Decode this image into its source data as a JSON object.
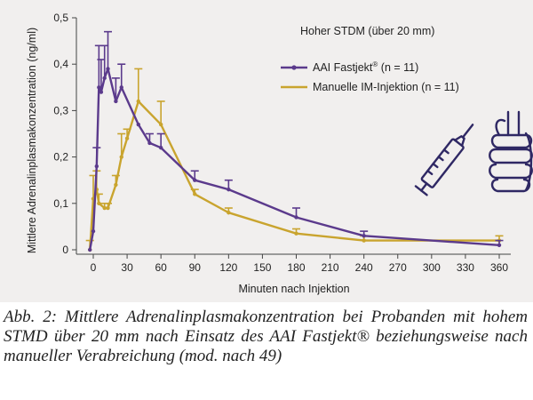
{
  "chart_data": {
    "type": "line",
    "title": "Hoher STDM (über 20 mm)",
    "xlabel": "Minuten nach Injektion",
    "ylabel": "Mittlere Adrenalinplasmakonzentration (ng/ml)",
    "xlim": [
      -5,
      365
    ],
    "ylim": [
      0,
      0.5
    ],
    "x_ticks": [
      "0",
      "30",
      "60",
      "90",
      "120",
      "150",
      "180",
      "210",
      "240",
      "270",
      "300",
      "330",
      "360"
    ],
    "y_ticks": [
      "0",
      "0,1",
      "0,2",
      "0,3",
      "0,4",
      "0,5"
    ],
    "legend_position": "top-right",
    "series": [
      {
        "name": "AAI Fastjekt",
        "name_suffix": "®",
        "n_label": "(n = 11)",
        "color": "#5b3a8c",
        "points": [
          {
            "x": -3,
            "y": 0.0,
            "err": 0.0
          },
          {
            "x": 0,
            "y": 0.04,
            "err": 0.0
          },
          {
            "x": 3,
            "y": 0.18,
            "err": 0.04
          },
          {
            "x": 5,
            "y": 0.35,
            "err": 0.09
          },
          {
            "x": 7,
            "y": 0.34,
            "err": 0.07
          },
          {
            "x": 10,
            "y": 0.37,
            "err": 0.07
          },
          {
            "x": 13,
            "y": 0.39,
            "err": 0.08
          },
          {
            "x": 20,
            "y": 0.32,
            "err": 0.05
          },
          {
            "x": 25,
            "y": 0.35,
            "err": 0.05
          },
          {
            "x": 40,
            "y": 0.27,
            "err": 0.0
          },
          {
            "x": 50,
            "y": 0.23,
            "err": 0.02
          },
          {
            "x": 60,
            "y": 0.22,
            "err": 0.03
          },
          {
            "x": 90,
            "y": 0.15,
            "err": 0.02
          },
          {
            "x": 120,
            "y": 0.13,
            "err": 0.02
          },
          {
            "x": 180,
            "y": 0.07,
            "err": 0.02
          },
          {
            "x": 240,
            "y": 0.03,
            "err": 0.01
          },
          {
            "x": 360,
            "y": 0.01,
            "err": 0.01
          }
        ]
      },
      {
        "name": "Manuelle IM-Injektion",
        "name_suffix": "",
        "n_label": "(n = 11)",
        "color": "#c9a42e",
        "points": [
          {
            "x": -3,
            "y": 0.0,
            "err": 0.02
          },
          {
            "x": 0,
            "y": 0.11,
            "err": 0.05
          },
          {
            "x": 3,
            "y": 0.13,
            "err": 0.04
          },
          {
            "x": 5,
            "y": 0.1,
            "err": 0.02
          },
          {
            "x": 10,
            "y": 0.09,
            "err": 0.01
          },
          {
            "x": 13,
            "y": 0.09,
            "err": 0.01
          },
          {
            "x": 20,
            "y": 0.14,
            "err": 0.02
          },
          {
            "x": 25,
            "y": 0.2,
            "err": 0.05
          },
          {
            "x": 30,
            "y": 0.24,
            "err": 0.02
          },
          {
            "x": 40,
            "y": 0.32,
            "err": 0.07
          },
          {
            "x": 60,
            "y": 0.27,
            "err": 0.05
          },
          {
            "x": 90,
            "y": 0.12,
            "err": 0.01
          },
          {
            "x": 120,
            "y": 0.08,
            "err": 0.01
          },
          {
            "x": 180,
            "y": 0.035,
            "err": 0.01
          },
          {
            "x": 240,
            "y": 0.02,
            "err": 0.01
          },
          {
            "x": 360,
            "y": 0.02,
            "err": 0.01
          }
        ]
      }
    ]
  },
  "caption": "Abb. 2: Mittlere Adrenalinplasmakonzentration bei Probanden mit hohem STMD über 20 mm nach Einsatz des AAI Fastjekt® beziehungsweise nach manueller Verabreichung (mod. nach 49)",
  "decor": {
    "syringe_icon": "syringe-icon",
    "fist_icon": "fist-icon",
    "icon_color": "#2f2864"
  }
}
